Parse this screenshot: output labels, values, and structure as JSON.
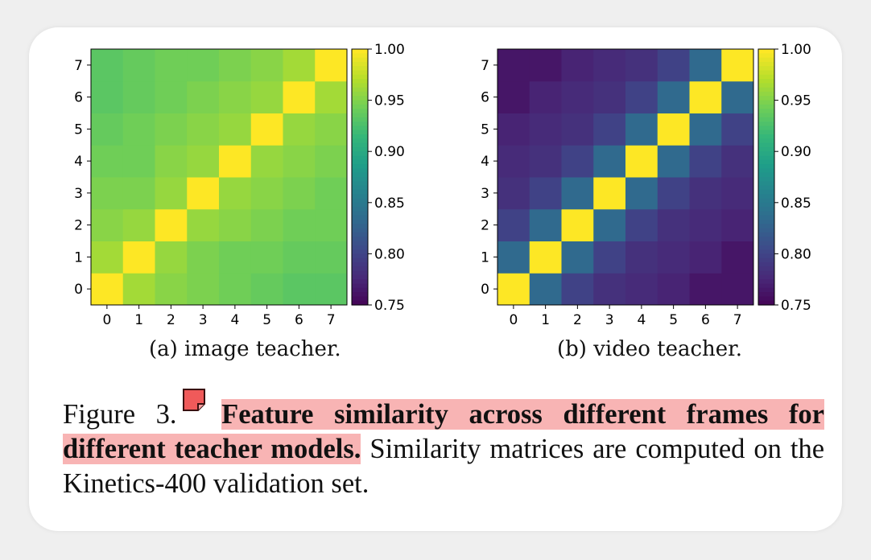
{
  "colors": {
    "highlight": "#f8b4b4",
    "annotation_icon": "#f05a5a",
    "colormap": [
      "#440154",
      "#482878",
      "#3e4989",
      "#31688e",
      "#26828e",
      "#1f9e89",
      "#35b779",
      "#6ece58",
      "#b5de2b",
      "#fde725"
    ]
  },
  "figure": {
    "label": "Figure 3.",
    "title_highlight": "Feature similarity across different frames for different teacher models.",
    "body": "Similarity matrices are computed on the Kinetics-400 validation set.",
    "annotation_icon": "note-icon"
  },
  "chart_data": [
    {
      "type": "heatmap",
      "caption": "(a) image teacher.",
      "x_ticks": [
        "0",
        "1",
        "2",
        "3",
        "4",
        "5",
        "6",
        "7"
      ],
      "y_ticks": [
        "0",
        "1",
        "2",
        "3",
        "4",
        "5",
        "6",
        "7"
      ],
      "colorbar": {
        "range": [
          0.75,
          1.0
        ],
        "ticks": [
          "0.75",
          "0.80",
          "0.85",
          "0.90",
          "0.95",
          "1.00"
        ],
        "colormap": "viridis"
      },
      "matrix": [
        [
          1.0,
          0.965,
          0.955,
          0.95,
          0.945,
          0.94,
          0.935,
          0.935
        ],
        [
          0.965,
          1.0,
          0.96,
          0.95,
          0.945,
          0.945,
          0.94,
          0.94
        ],
        [
          0.955,
          0.96,
          1.0,
          0.96,
          0.955,
          0.95,
          0.945,
          0.945
        ],
        [
          0.95,
          0.95,
          0.96,
          1.0,
          0.96,
          0.955,
          0.95,
          0.945
        ],
        [
          0.945,
          0.945,
          0.955,
          0.96,
          1.0,
          0.96,
          0.955,
          0.95
        ],
        [
          0.94,
          0.945,
          0.95,
          0.955,
          0.96,
          1.0,
          0.96,
          0.955
        ],
        [
          0.935,
          0.94,
          0.945,
          0.95,
          0.955,
          0.96,
          1.0,
          0.965
        ],
        [
          0.935,
          0.94,
          0.945,
          0.945,
          0.95,
          0.955,
          0.965,
          1.0
        ]
      ]
    },
    {
      "type": "heatmap",
      "caption": "(b) video teacher.",
      "x_ticks": [
        "0",
        "1",
        "2",
        "3",
        "4",
        "5",
        "6",
        "7"
      ],
      "y_ticks": [
        "0",
        "1",
        "2",
        "3",
        "4",
        "5",
        "6",
        "7"
      ],
      "colorbar": {
        "range": [
          0.75,
          1.0
        ],
        "ticks": [
          "0.75",
          "0.80",
          "0.85",
          "0.90",
          "0.95",
          "1.00"
        ],
        "colormap": "viridis"
      },
      "matrix": [
        [
          1.0,
          0.835,
          0.8,
          0.785,
          0.78,
          0.775,
          0.765,
          0.765
        ],
        [
          0.835,
          1.0,
          0.835,
          0.8,
          0.785,
          0.78,
          0.775,
          0.765
        ],
        [
          0.8,
          0.835,
          1.0,
          0.835,
          0.8,
          0.785,
          0.78,
          0.775
        ],
        [
          0.785,
          0.8,
          0.835,
          1.0,
          0.835,
          0.8,
          0.785,
          0.78
        ],
        [
          0.78,
          0.785,
          0.8,
          0.835,
          1.0,
          0.835,
          0.8,
          0.785
        ],
        [
          0.775,
          0.78,
          0.785,
          0.8,
          0.835,
          1.0,
          0.835,
          0.8
        ],
        [
          0.765,
          0.775,
          0.78,
          0.785,
          0.8,
          0.835,
          1.0,
          0.835
        ],
        [
          0.765,
          0.765,
          0.775,
          0.78,
          0.785,
          0.8,
          0.835,
          1.0
        ]
      ]
    }
  ]
}
